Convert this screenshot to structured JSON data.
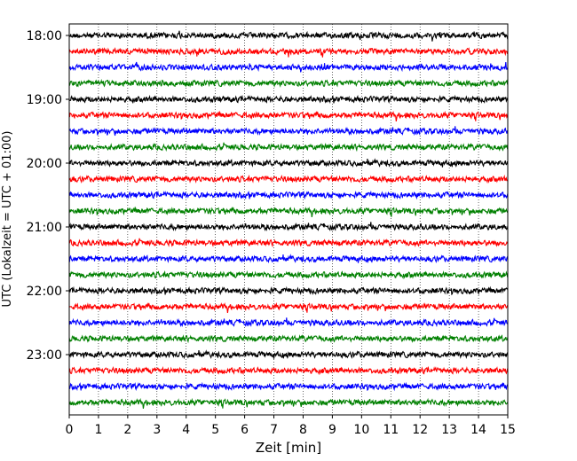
{
  "chart_data": {
    "type": "line",
    "title": "",
    "xlabel": "Zeit  [min]",
    "ylabel": "UTC (Lokalzeit = UTC + 01:00)",
    "xlim": [
      0,
      15
    ],
    "x_ticks": [
      "0",
      "1",
      "2",
      "3",
      "4",
      "5",
      "6",
      "7",
      "8",
      "9",
      "10",
      "11",
      "12",
      "13",
      "14",
      "15"
    ],
    "y_tick_labels": [
      "18:00",
      "19:00",
      "20:00",
      "21:00",
      "22:00",
      "23:00"
    ],
    "grid": "vertical dotted",
    "trace_count": 24,
    "trace_minutes": 15,
    "first_trace_start": "18:00",
    "color_cycle": [
      "#000000",
      "#ff0000",
      "#0000ff",
      "#008000"
    ]
  }
}
